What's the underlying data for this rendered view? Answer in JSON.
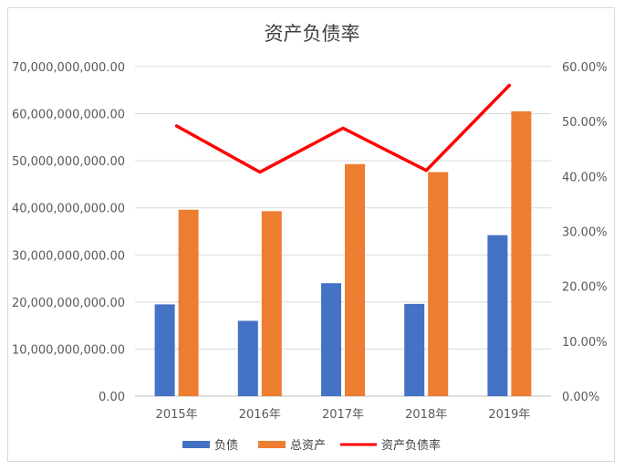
{
  "chart_data": {
    "type": "bar",
    "title": "资产负债率",
    "categories": [
      "2015年",
      "2016年",
      "2017年",
      "2018年",
      "2019年"
    ],
    "series": [
      {
        "name": "负债",
        "type": "bar",
        "axis": "left",
        "color": "#4472c4",
        "values": [
          19500000000,
          16000000000,
          24000000000,
          19600000000,
          34200000000
        ]
      },
      {
        "name": "总资产",
        "type": "bar",
        "axis": "left",
        "color": "#ed7d31",
        "values": [
          39600000000,
          39300000000,
          49300000000,
          47600000000,
          60500000000
        ]
      },
      {
        "name": "资产负债率",
        "type": "line",
        "axis": "right",
        "color": "#ff0000",
        "values": [
          0.492,
          0.408,
          0.488,
          0.411,
          0.566
        ]
      }
    ],
    "y_left": {
      "min": 0,
      "max": 70000000000,
      "ticks": [
        "0.00",
        "10,000,000,000.00",
        "20,000,000,000.00",
        "30,000,000,000.00",
        "40,000,000,000.00",
        "50,000,000,000.00",
        "60,000,000,000.00",
        "70,000,000,000.00"
      ]
    },
    "y_right": {
      "min": 0,
      "max": 0.6,
      "ticks": [
        "0.00%",
        "10.00%",
        "20.00%",
        "30.00%",
        "40.00%",
        "50.00%",
        "60.00%"
      ]
    },
    "grid": true,
    "legend": "bottom"
  }
}
